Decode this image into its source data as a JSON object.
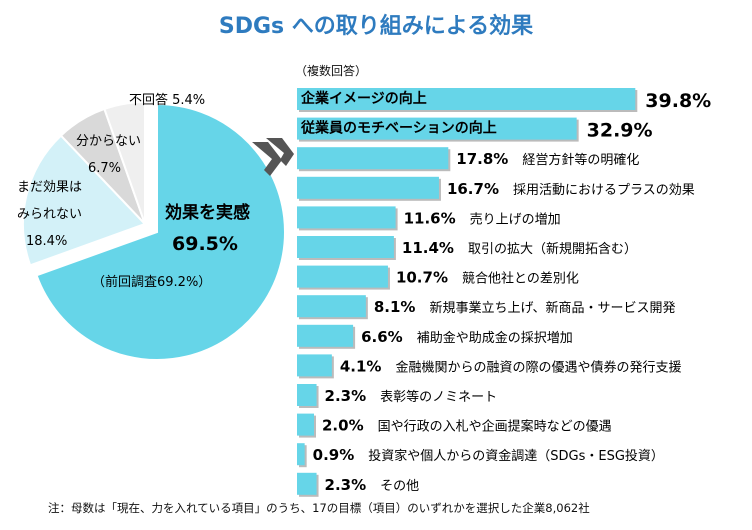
{
  "chart_data": [
    {
      "type": "pie",
      "title": "SDGs への取り組みによる効果",
      "slices": [
        {
          "label": "効果を実感",
          "value": 69.5,
          "value_label": "69.5%",
          "note": "（前回調査69.2%）",
          "color": "#66d5e8"
        },
        {
          "label": "まだ効果は みられない",
          "value": 18.4,
          "value_label": "18.4%",
          "color": "#d3f1f8"
        },
        {
          "label": "分からない",
          "value": 6.7,
          "value_label": "6.7%",
          "color": "#d9d9d9"
        },
        {
          "label": "不回答",
          "value": 5.4,
          "value_label": "5.4%",
          "color": "#efefef"
        }
      ]
    },
    {
      "type": "bar",
      "orientation": "horizontal",
      "subtitle": "（複数回答）",
      "unit": "%",
      "categories": [
        "企業イメージの向上",
        "従業員のモチベーションの向上",
        "経営方針等の明確化",
        "採用活動におけるプラスの効果",
        "売り上げの増加",
        "取引の拡大（新規開拓含む）",
        "競合他社との差別化",
        "新規事業立ち上げ、新商品・サービス開発",
        "補助金や助成金の採択増加",
        "金融機関からの融資の際の優遇や債券の発行支援",
        "表彰等のノミネート",
        "国や行政の入札や企画提案時などの優遇",
        "投資家や個人からの資金調達（SDGs・ESG投資）",
        "その他"
      ],
      "values": [
        39.8,
        32.9,
        17.8,
        16.7,
        11.6,
        11.4,
        10.7,
        8.1,
        6.6,
        4.1,
        2.3,
        2.0,
        0.9,
        2.3
      ],
      "value_labels": [
        "39.8%",
        "32.9%",
        "17.8%",
        "16.7%",
        "11.6%",
        "11.4%",
        "10.7%",
        "8.1%",
        "6.6%",
        "4.1%",
        "2.3%",
        "2.0%",
        "0.9%",
        "2.3%"
      ],
      "color": "#66d5e8"
    }
  ],
  "title": "SDGs への取り組みによる効果",
  "footer": "注：母数は「現在、力を入れている項目」のうち、17の目標（項目）のいずれかを選択した企業8,062社"
}
